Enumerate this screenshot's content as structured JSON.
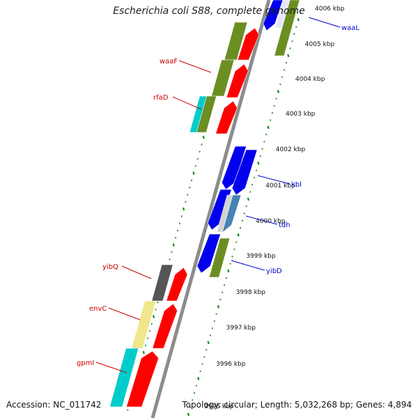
{
  "title": "Escherichia coli S88, complete genome",
  "footer": {
    "accession": "Accession: NC_011742",
    "summary": "Topology: circular; Length: 5,032,268 bp; Genes: 4,894"
  },
  "colors": {
    "backbone": "#8c8c8c",
    "tick": "#1a8a1a",
    "forward_label": "#cc0000",
    "reverse_label": "#0000cc",
    "green_gene": "#6b8e23",
    "red_gene": "#ff0000",
    "blue_gene": "#0000ee",
    "cyan_gene": "#00cccc",
    "yellow_gene": "#f0e68c",
    "gray_gene": "#555555",
    "steelblue_gene": "#4682b4"
  },
  "scale_labels": [
    "3995 kbp",
    "3996 kbp",
    "3997 kbp",
    "3998 kbp",
    "3999 kbp",
    "4000 kbp",
    "4001 kbp",
    "4002 kbp",
    "4003 kbp",
    "4004 kbp",
    "4005 kbp",
    "4006 kbp"
  ],
  "gene_labels": [
    {
      "name": "waaF",
      "side": "left"
    },
    {
      "name": "rfaD",
      "side": "left"
    },
    {
      "name": "yibQ",
      "side": "left"
    },
    {
      "name": "envC",
      "side": "left"
    },
    {
      "name": "gpmI",
      "side": "left"
    },
    {
      "name": "waaL",
      "side": "right"
    },
    {
      "name": "kbl",
      "side": "right"
    },
    {
      "name": "tdh",
      "side": "right"
    },
    {
      "name": "yibD",
      "side": "right"
    }
  ]
}
